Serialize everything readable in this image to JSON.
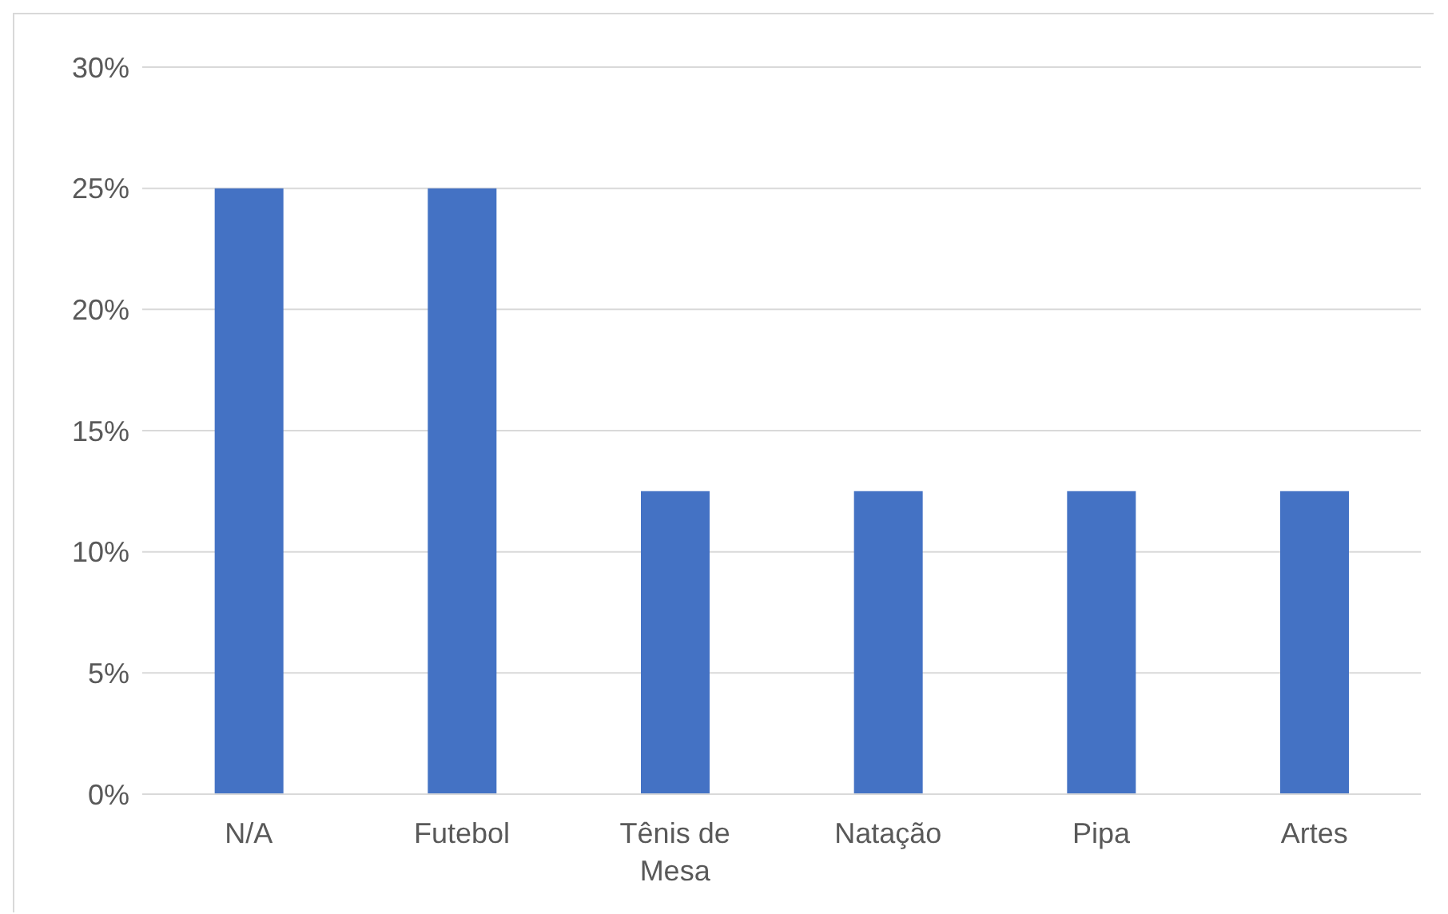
{
  "chart_data": {
    "type": "bar",
    "categories": [
      "N/A",
      "Futebol",
      "Tênis de Mesa",
      "Natação",
      "Pipa",
      "Artes"
    ],
    "values": [
      25,
      25,
      12.5,
      12.5,
      12.5,
      12.5
    ],
    "color": "#4472c4",
    "ylim": [
      0,
      30
    ],
    "yticks": [
      {
        "value": 0,
        "label": "0%"
      },
      {
        "value": 5,
        "label": "5%"
      },
      {
        "value": 10,
        "label": "10%"
      },
      {
        "value": 15,
        "label": "15%"
      },
      {
        "value": 20,
        "label": "20%"
      },
      {
        "value": 25,
        "label": "25%"
      },
      {
        "value": 30,
        "label": "30%"
      }
    ],
    "grid": "y"
  }
}
